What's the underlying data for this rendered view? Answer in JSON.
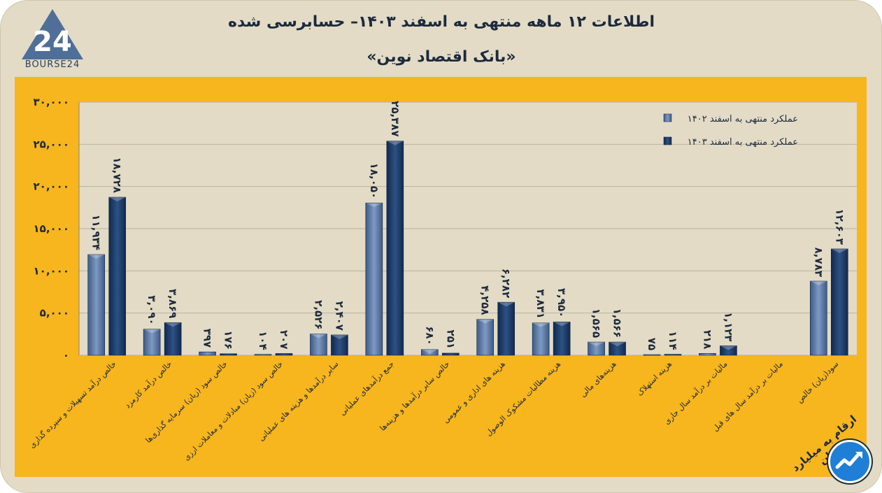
{
  "header": {
    "title": "اطلاعات ۱۲ ماهه منتهی به اسفند ۱۴۰۳– حسابرسی شده",
    "subtitle": "«بانک اقتصاد نوین»"
  },
  "logo": {
    "text": "BOURSE24",
    "mark": "24",
    "icon": "bourse24-logo-icon"
  },
  "footer": {
    "unit_label": "ارقام به میلیارد تومان",
    "badge_icon": "trend-chart-badge-icon"
  },
  "colors": {
    "background": "#e3dbc6",
    "panel": "#f7b51e",
    "plot_bg": "#e3dbc6",
    "series_1402": "#5b7aa6",
    "series_1403": "#1b3a66",
    "grid": "#b9b29f",
    "text": "#1d2a3c"
  },
  "chart_data": {
    "type": "bar",
    "title": "",
    "xlabel": "",
    "ylabel": "",
    "ylim": [
      0,
      30000
    ],
    "yticks": [
      0,
      5000,
      10000,
      15000,
      20000,
      25000,
      30000
    ],
    "ytick_labels": [
      "۰",
      "۵,۰۰۰",
      "۱۰,۰۰۰",
      "۱۵,۰۰۰",
      "۲۰,۰۰۰",
      "۲۵,۰۰۰",
      "۳۰,۰۰۰"
    ],
    "grid": true,
    "legend_position": "top-right",
    "categories": [
      "خالص درآمد تسهیلات و سپرده گذاری",
      "خالص درآمد کارمزد",
      "خالص سود (زیان) سرمایه گذاری‌ها",
      "خالص سود (زیان) مبادلات و معاملات ارزی",
      "سایر درآمدها و هزینه های عملیاتی",
      "جمع درآمدهای عملیاتی",
      "خالص سایر درآمدها و هزینه‌ها",
      "هزینه های اداری و عمومی",
      "هزینه مطالبات مشکوک الوصول",
      "هزینه‌های مالی",
      "هزینه استهلاک",
      "مالیات بر درآمد سال جاری",
      "مالیات بر درآمد سال های قبل",
      "سود(زیان) خالص"
    ],
    "series": [
      {
        "name": "عملکرد منتهی به اسفند ۱۴۰۲",
        "color": "#5b7aa6",
        "values": [
          11934,
          3090,
          397,
          104,
          2526,
          18050,
          680,
          4258,
          3831,
          1565,
          75,
          218,
          null,
          8783
        ],
        "labels": [
          "۱۱,۹۳۴",
          "۳,۰۹۰",
          "۳۹۷",
          "۱۰۴",
          "۲,۵۲۶",
          "۱۸,۰۵۰",
          "۶۸۰",
          "۴,۲۵۸",
          "۳,۸۳۱",
          "۱,۵۶۵",
          "۷۵",
          "۲۱۸",
          "",
          "۸,۷۸۳"
        ]
      },
      {
        "name": "عملکرد منتهی به اسفند ۱۴۰۳",
        "color": "#1b3a66",
        "values": [
          18728,
          3869,
          176,
          207,
          2407,
          25387,
          251,
          6282,
          3950,
          1566,
          114,
          1123,
          null,
          12603
        ],
        "labels": [
          "۱۸,۷۲۸",
          "۳,۸۶۹",
          "۱۷۶",
          "۲۰۷",
          "۲,۴۰۷",
          "۲۵,۳۸۷",
          "۲۵۱",
          "۶,۲۸۲",
          "۳,۹۵۰",
          "۱,۵۶۶",
          "۱۱۴",
          "۱,۱۲۳",
          "",
          "۱۲,۶۰۳"
        ]
      }
    ]
  }
}
